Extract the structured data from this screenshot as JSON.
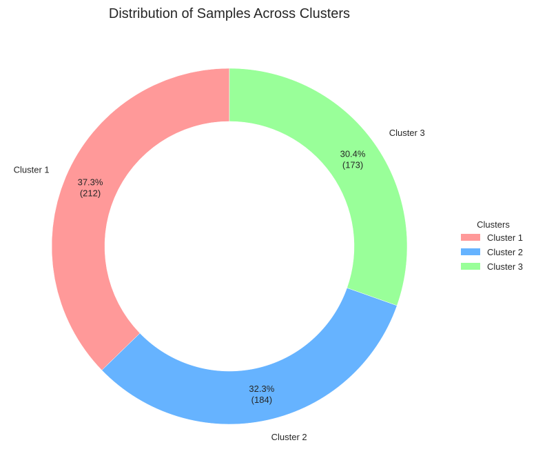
{
  "chart_data": {
    "type": "pie",
    "donut": true,
    "title": "Distribution of Samples Across Clusters",
    "categories": [
      "Cluster 1",
      "Cluster 2",
      "Cluster 3"
    ],
    "values": [
      212,
      184,
      173
    ],
    "percent_labels": [
      "37.3%",
      "32.3%",
      "30.4%"
    ],
    "count_labels": [
      "(212)",
      "(184)",
      "(173)"
    ],
    "colors": [
      "#ff9999",
      "#66b3ff",
      "#99ff99"
    ],
    "start_angle_deg": 90,
    "direction": "counterclockwise",
    "legend": {
      "title": "Clusters",
      "placement": "center-right",
      "entries": [
        "Cluster 1",
        "Cluster 2",
        "Cluster 3"
      ]
    }
  }
}
